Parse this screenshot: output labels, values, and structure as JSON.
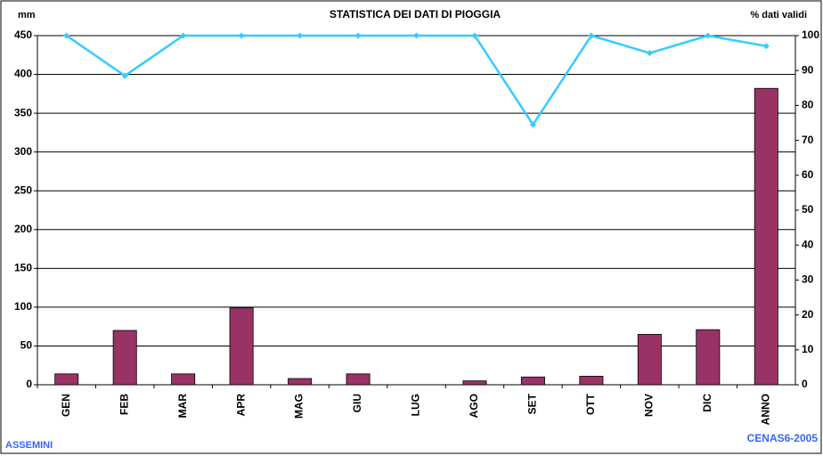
{
  "chart_data": {
    "type": "bar_line",
    "title": "STATISTICA DEI DATI DI PIOGGIA",
    "y_label": "mm",
    "y2_label": "% dati validi",
    "footer_left": "ASSEMINI",
    "footer_right": "CENAS6-2005",
    "categories": [
      "GEN",
      "FEB",
      "MAR",
      "APR",
      "MAG",
      "GIU",
      "LUG",
      "AGO",
      "SET",
      "OTT",
      "NOV",
      "DIC",
      "ANNO"
    ],
    "series": [
      {
        "name": "mm",
        "type": "bar",
        "color": "#993366",
        "values": [
          14,
          70,
          14,
          99,
          8,
          14,
          0,
          5,
          10,
          11,
          65,
          71,
          382
        ]
      },
      {
        "name": "% dati validi",
        "type": "line",
        "axis": "y2",
        "color": "#33ccff",
        "values": [
          100,
          88.5,
          100,
          100,
          100,
          100,
          100,
          100,
          74.5,
          100,
          95,
          100,
          97
        ]
      }
    ],
    "ylim": [
      0,
      450
    ],
    "yticks": [
      0,
      50,
      100,
      150,
      200,
      250,
      300,
      350,
      400,
      450
    ],
    "y2lim": [
      0,
      100
    ],
    "y2ticks": [
      0,
      10,
      20,
      30,
      40,
      50,
      60,
      70,
      80,
      90,
      100
    ],
    "grid": true
  }
}
